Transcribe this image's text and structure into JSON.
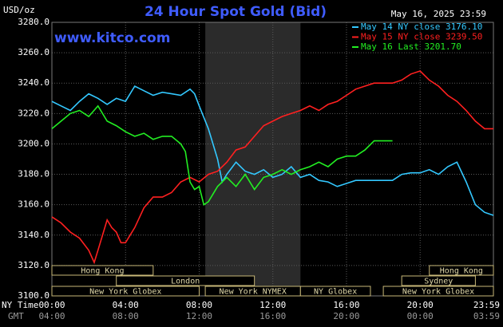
{
  "chart_data": {
    "type": "line",
    "title": "24 Hour Spot Gold (Bid)",
    "unit_label": "USD/oz",
    "timestamp": "May 16, 2025 23:59",
    "source": "www.kitco.com",
    "x_label": "NY Time",
    "x2_label": "GMT",
    "xlim": [
      0,
      23.98
    ],
    "ylim": [
      3100,
      3280
    ],
    "xticks": [
      {
        "value": 0,
        "label": "00:00"
      },
      {
        "value": 4,
        "label": "04:00"
      },
      {
        "value": 8,
        "label": "08:00"
      },
      {
        "value": 12,
        "label": "12:00"
      },
      {
        "value": 16,
        "label": "16:00"
      },
      {
        "value": 20,
        "label": "20:00"
      },
      {
        "value": 23.98,
        "label": "23:59"
      }
    ],
    "x2ticks": [
      {
        "value": 0,
        "label": "04:00"
      },
      {
        "value": 4,
        "label": "08:00"
      },
      {
        "value": 8,
        "label": "12:00"
      },
      {
        "value": 12,
        "label": "16:00"
      },
      {
        "value": 16,
        "label": "20:00"
      },
      {
        "value": 20,
        "label": "00:00"
      },
      {
        "value": 23.98,
        "label": "03:59"
      }
    ],
    "yticks": [
      {
        "value": 3100,
        "label": "3100.0"
      },
      {
        "value": 3120,
        "label": "3120.0"
      },
      {
        "value": 3140,
        "label": "3140.0"
      },
      {
        "value": 3160,
        "label": "3160.0"
      },
      {
        "value": 3180,
        "label": "3180.0"
      },
      {
        "value": 3200,
        "label": "3200.0"
      },
      {
        "value": 3220,
        "label": "3220.0"
      },
      {
        "value": 3240,
        "label": "3240.0"
      },
      {
        "value": 3260,
        "label": "3260.0"
      },
      {
        "value": 3280,
        "label": "3280.0"
      }
    ],
    "grid": true,
    "highlight_x": [
      8.33,
      13.5
    ],
    "legend": "top-right",
    "series": [
      {
        "name": "May 14 NY close 3176.10",
        "color": "#33c8ff",
        "x": [
          0,
          0.5,
          1,
          1.5,
          2,
          2.5,
          3,
          3.5,
          4,
          4.5,
          5,
          5.5,
          6,
          6.5,
          7,
          7.5,
          7.75,
          8,
          8.5,
          9,
          9.25,
          9.5,
          10,
          10.5,
          11,
          11.5,
          12,
          12.5,
          13,
          13.5,
          14,
          14.5,
          15,
          15.5,
          16,
          16.5,
          17,
          17.5,
          18,
          18.5,
          19,
          19.5,
          20,
          20.5,
          21,
          21.5,
          22,
          22.5,
          23,
          23.5,
          23.98
        ],
        "values": [
          3228,
          3225,
          3222,
          3228,
          3233,
          3230,
          3226,
          3230,
          3228,
          3238,
          3235,
          3232,
          3234,
          3233,
          3232,
          3236,
          3233,
          3225,
          3210,
          3190,
          3175,
          3180,
          3188,
          3182,
          3180,
          3183,
          3178,
          3180,
          3185,
          3178,
          3180,
          3176,
          3175,
          3172,
          3174,
          3176,
          3176,
          3176,
          3176,
          3176,
          3180,
          3181,
          3181,
          3183,
          3180,
          3185,
          3188,
          3175,
          3160,
          3155,
          3153
        ]
      },
      {
        "name": "May 15 NY close 3239.50",
        "color": "#ff2020",
        "x": [
          0,
          0.5,
          1,
          1.5,
          2,
          2.3,
          2.5,
          3,
          3.25,
          3.5,
          3.75,
          4,
          4.5,
          5,
          5.5,
          6,
          6.5,
          7,
          7.5,
          8,
          8.5,
          9,
          9.5,
          10,
          10.5,
          11,
          11.5,
          12,
          12.5,
          13,
          13.5,
          14,
          14.5,
          15,
          15.5,
          16,
          16.5,
          17,
          17.5,
          18,
          18.5,
          19,
          19.5,
          20,
          20.5,
          21,
          21.5,
          22,
          22.5,
          23,
          23.5,
          23.98
        ],
        "values": [
          3152,
          3148,
          3142,
          3138,
          3130,
          3122,
          3130,
          3150,
          3145,
          3142,
          3135,
          3135,
          3145,
          3158,
          3165,
          3165,
          3168,
          3175,
          3178,
          3175,
          3180,
          3182,
          3188,
          3196,
          3198,
          3205,
          3212,
          3215,
          3218,
          3220,
          3222,
          3225,
          3222,
          3226,
          3228,
          3232,
          3236,
          3238,
          3240,
          3240,
          3240,
          3242,
          3246,
          3248,
          3242,
          3238,
          3232,
          3228,
          3222,
          3215,
          3210,
          3210
        ]
      },
      {
        "name": "May 16 Last 3201.70",
        "color": "#22ee22",
        "x": [
          0,
          0.5,
          1,
          1.5,
          2,
          2.5,
          3,
          3.5,
          4,
          4.5,
          5,
          5.5,
          6,
          6.5,
          7,
          7.25,
          7.5,
          7.75,
          8,
          8.25,
          8.5,
          9,
          9.5,
          10,
          10.5,
          11,
          11.5,
          12,
          12.5,
          13,
          13.5,
          14,
          14.5,
          15,
          15.5,
          16,
          16.5,
          17,
          17.5,
          18,
          18.5
        ],
        "values": [
          3210,
          3215,
          3220,
          3222,
          3218,
          3225,
          3215,
          3212,
          3208,
          3205,
          3207,
          3203,
          3205,
          3205,
          3200,
          3195,
          3175,
          3170,
          3172,
          3160,
          3162,
          3172,
          3178,
          3172,
          3180,
          3170,
          3178,
          3180,
          3183,
          3180,
          3183,
          3185,
          3188,
          3185,
          3190,
          3192,
          3192,
          3196,
          3202,
          3202,
          3202
        ]
      }
    ],
    "session_rows": [
      [
        {
          "label": "Hong Kong",
          "start": 0,
          "end": 5.5
        },
        {
          "label": "Hong Kong",
          "start": 20.5,
          "end": 23.98
        }
      ],
      [
        {
          "label": "London",
          "start": 3.5,
          "end": 11
        },
        {
          "label": "Sydney",
          "start": 19,
          "end": 23
        }
      ],
      [
        {
          "label": "New York Globex",
          "start": 0,
          "end": 8
        },
        {
          "label": "New York NYMEX",
          "start": 8.33,
          "end": 13.5
        },
        {
          "label": "NY Globex",
          "start": 13.5,
          "end": 17.3
        },
        {
          "label": "New York Globex",
          "start": 18,
          "end": 23.98
        }
      ]
    ]
  }
}
